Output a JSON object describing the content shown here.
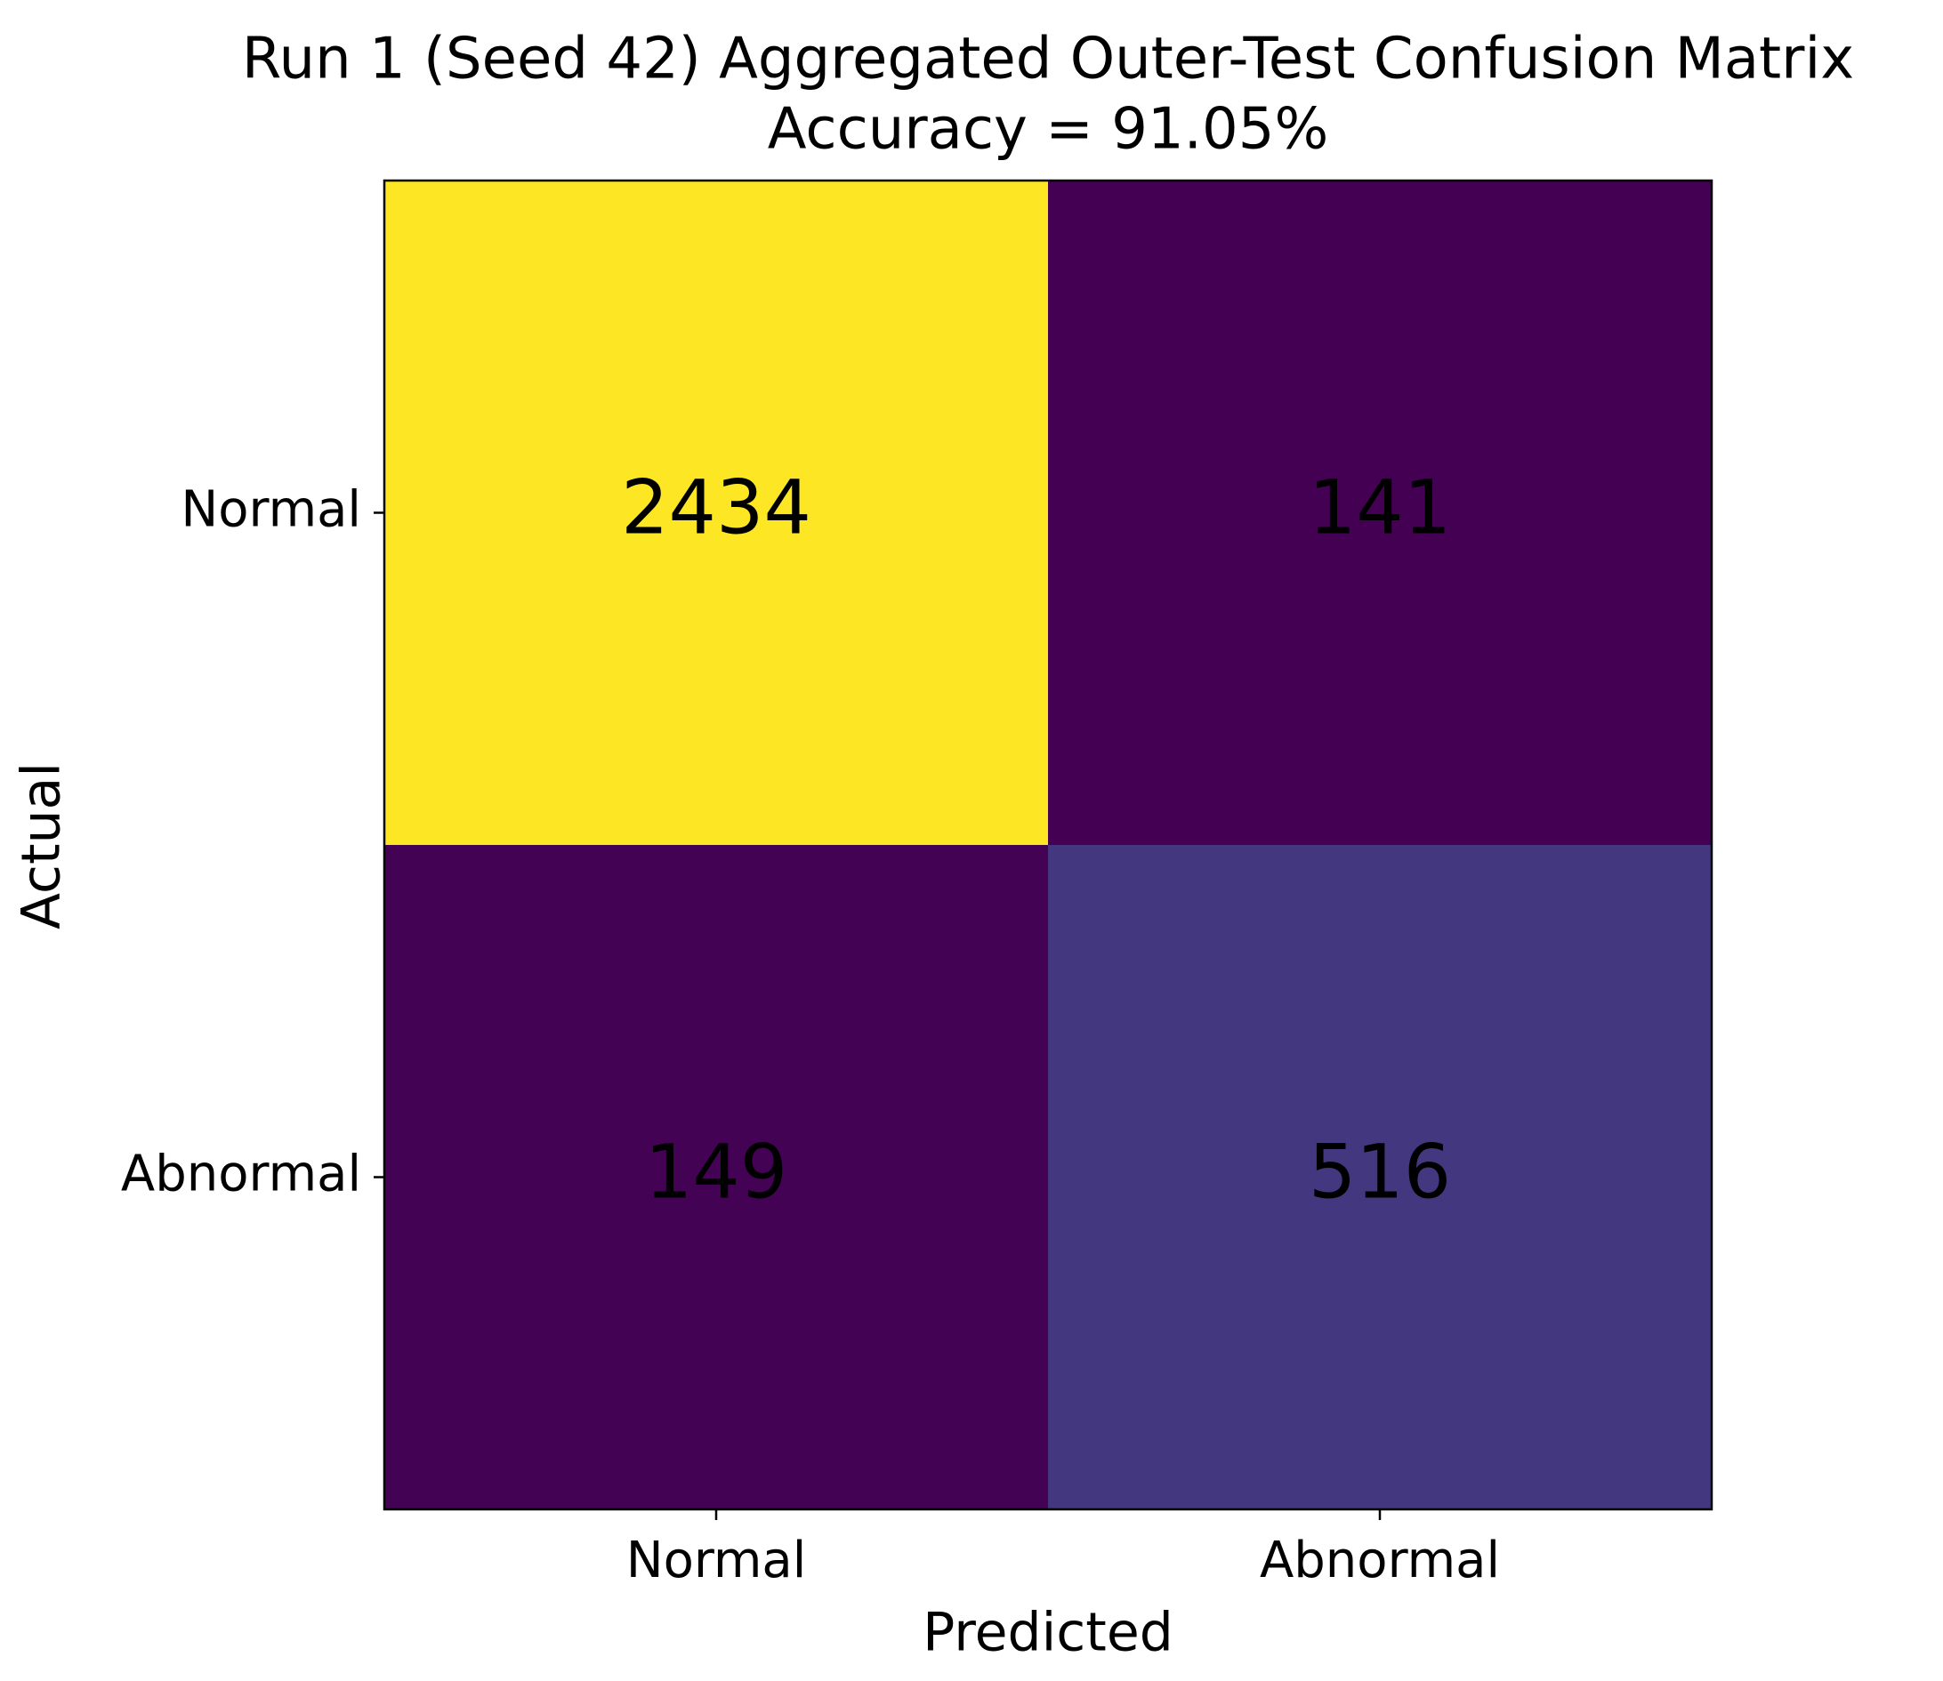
{
  "chart_data": {
    "type": "heatmap",
    "title": "Run 1 (Seed 42) Aggregated Outer-Test Confusion Matrix",
    "subtitle": "Accuracy = 91.05%",
    "x_label": "Predicted",
    "y_label": "Actual",
    "x_categories": [
      "Normal",
      "Abnormal"
    ],
    "y_categories": [
      "Normal",
      "Abnormal"
    ],
    "values": [
      [
        2434,
        141
      ],
      [
        149,
        516
      ]
    ],
    "colormap": "viridis"
  }
}
